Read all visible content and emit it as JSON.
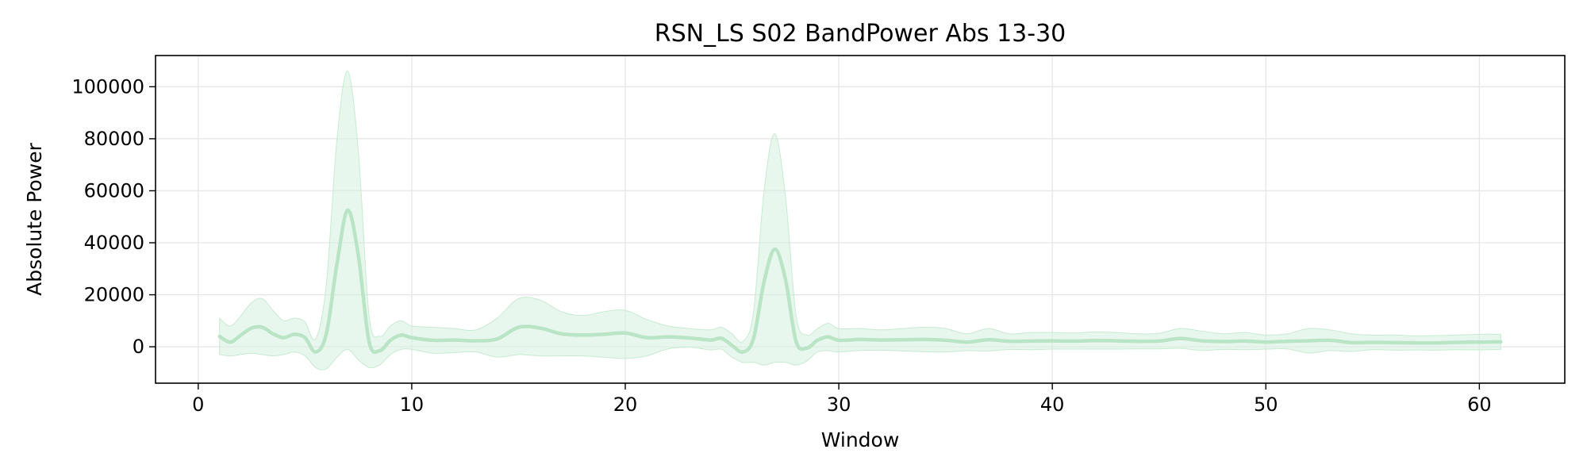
{
  "chart_data": {
    "type": "line",
    "title": "RSN_LS S02 BandPower Abs 13-30",
    "xlabel": "Window",
    "ylabel": "Absolute Power",
    "xlim": [
      -2,
      64
    ],
    "ylim": [
      -14000,
      112000
    ],
    "xticks": [
      0,
      10,
      20,
      30,
      40,
      50,
      60
    ],
    "yticks": [
      0,
      20000,
      40000,
      60000,
      80000,
      100000
    ],
    "grid": true,
    "legend": "none",
    "colors": {
      "line": "#b9e4c5",
      "band": "#d6f0de",
      "band_edge": "#c8ead2",
      "grid": "#e6e6e6",
      "axis": "#000000"
    },
    "series": [
      {
        "x": [
          1,
          1.5,
          2,
          2.5,
          3,
          3.5,
          4,
          4.5,
          5,
          5.5,
          6,
          6.5,
          7,
          7.5,
          8,
          8.5,
          9,
          9.5,
          10,
          11,
          12,
          13,
          14,
          15,
          16,
          17,
          18,
          19,
          20,
          21,
          22,
          23,
          24,
          24.5,
          25,
          25.5,
          26,
          26.5,
          27,
          27.5,
          28,
          28.5,
          29,
          29.5,
          30,
          31,
          32,
          33,
          34,
          35,
          36,
          37,
          38,
          39,
          40,
          41,
          42,
          43,
          44,
          45,
          46,
          47,
          48,
          49,
          50,
          51,
          52,
          53,
          54,
          55,
          56,
          57,
          58,
          59,
          60,
          61
        ],
        "mean": [
          4000,
          1800,
          4500,
          7200,
          7500,
          5000,
          3500,
          4800,
          3500,
          -2000,
          5000,
          32000,
          52500,
          35000,
          2000,
          -1500,
          2500,
          4500,
          3500,
          2500,
          2600,
          2300,
          3000,
          7500,
          7200,
          5000,
          4500,
          4800,
          5300,
          3500,
          3800,
          3400,
          2600,
          3300,
          500,
          -2000,
          3000,
          25000,
          37500,
          26000,
          2000,
          -500,
          2500,
          3800,
          2500,
          2800,
          2600,
          2700,
          2800,
          2500,
          1800,
          2700,
          2100,
          2200,
          2300,
          2200,
          2400,
          2300,
          2100,
          2200,
          3200,
          2300,
          2000,
          2200,
          1800,
          2100,
          2300,
          2500,
          1600,
          1700,
          1600,
          1500,
          1500,
          1700,
          1800,
          1900
        ],
        "upper": [
          11000,
          8000,
          12000,
          17000,
          18500,
          14000,
          10000,
          11000,
          9500,
          3000,
          24000,
          80000,
          106000,
          75000,
          12000,
          4000,
          8000,
          10000,
          8000,
          7500,
          7000,
          6500,
          11000,
          18500,
          18000,
          13500,
          12000,
          13500,
          14000,
          10500,
          8000,
          7000,
          6500,
          7500,
          5000,
          2000,
          13000,
          60000,
          82000,
          58000,
          12000,
          4500,
          7000,
          9000,
          7000,
          7000,
          6500,
          7000,
          7500,
          7000,
          5000,
          7000,
          5000,
          5500,
          5500,
          5300,
          5700,
          5500,
          5000,
          5200,
          7000,
          6000,
          5000,
          5500,
          4500,
          5000,
          7000,
          6500,
          5000,
          4500,
          4500,
          4200,
          4300,
          4500,
          4800,
          4800
        ],
        "lower": [
          -3000,
          -3500,
          -3000,
          -2500,
          -3000,
          -3500,
          -3000,
          -2000,
          -3500,
          -8000,
          -8500,
          -4000,
          -1000,
          -5000,
          -8000,
          -7000,
          -3000,
          -1000,
          -1000,
          -2500,
          -2200,
          -2000,
          -4000,
          -3000,
          -3500,
          -3500,
          -3500,
          -4000,
          -4500,
          -3500,
          -800,
          -200,
          -1200,
          -900,
          -4000,
          -6000,
          -6000,
          -7000,
          -6000,
          -6000,
          -7000,
          -5500,
          -2000,
          -1500,
          -2000,
          -1400,
          -1300,
          -1600,
          -1900,
          -2000,
          -1500,
          -1600,
          -1000,
          -1100,
          -900,
          -900,
          -900,
          -900,
          -800,
          -800,
          -600,
          -1400,
          -1000,
          -1100,
          -900,
          -800,
          -2400,
          -1500,
          -1800,
          -1100,
          -1300,
          -1200,
          -1300,
          -1100,
          -1200,
          -1000
        ]
      }
    ]
  }
}
